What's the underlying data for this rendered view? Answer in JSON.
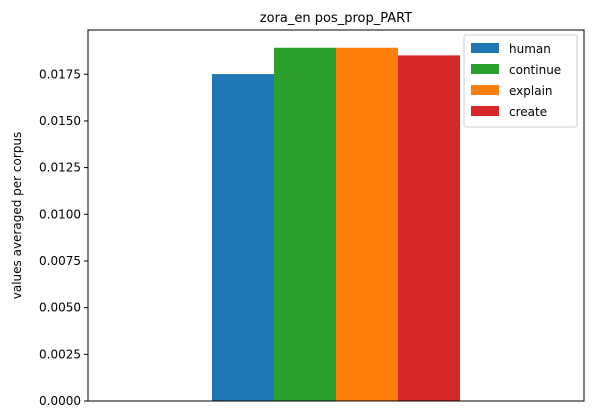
{
  "chart_data": {
    "type": "bar",
    "title": "zora_en pos_prop_PART",
    "xlabel": "",
    "ylabel": "values averaged per corpus",
    "categories": [
      ""
    ],
    "series": [
      {
        "name": "human",
        "values": [
          0.01751
        ],
        "color": "#1f77b4"
      },
      {
        "name": "continue",
        "values": [
          0.01892
        ],
        "color": "#2ca02c"
      },
      {
        "name": "explain",
        "values": [
          0.01892
        ],
        "color": "#ff7f0e"
      },
      {
        "name": "create",
        "values": [
          0.01851
        ],
        "color": "#d62728"
      }
    ],
    "ylim": [
      0,
      0.01987
    ],
    "yticks": [
      "0.0000",
      "0.0025",
      "0.0050",
      "0.0075",
      "0.0100",
      "0.0125",
      "0.0150",
      "0.0175"
    ],
    "legend_position": "top-right",
    "grid": false
  }
}
